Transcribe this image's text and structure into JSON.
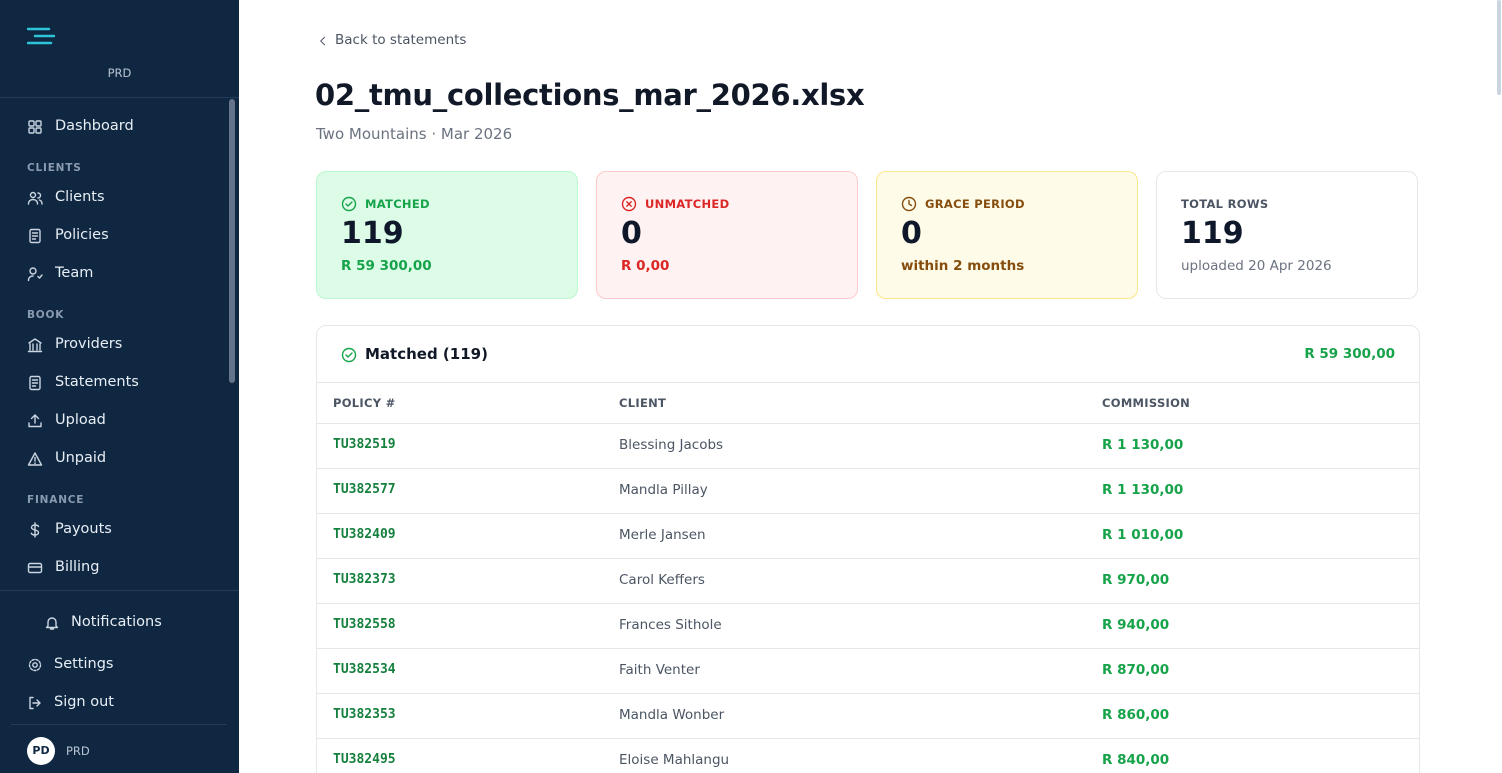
{
  "sidebar": {
    "brand": "PRD",
    "groups": [
      {
        "items": [
          "Dashboard"
        ]
      },
      {
        "label": "CLIENTS",
        "items": [
          "Clients",
          "Policies",
          "Team"
        ]
      },
      {
        "label": "BOOK",
        "items": [
          "Providers",
          "Statements",
          "Upload",
          "Unpaid"
        ]
      },
      {
        "label": "FINANCE",
        "items": [
          "Payouts",
          "Billing"
        ]
      }
    ],
    "footer": [
      "Notifications",
      "Settings",
      "Sign out"
    ],
    "user": {
      "initials": "PD",
      "name": "PRD"
    }
  },
  "main": {
    "back_link": "Back to statements",
    "title": "02_tmu_collections_mar_2026.xlsx",
    "subtitle": "Two Mountains · Mar 2026",
    "cards": [
      {
        "label": "MATCHED",
        "value": 119,
        "detail": "R 59 300,00"
      },
      {
        "label": "UNMATCHED",
        "value": 0,
        "detail": "R 0,00"
      },
      {
        "label": "GRACE PERIOD",
        "value": 0,
        "detail": "within 2 months"
      },
      {
        "label": "TOTAL ROWS",
        "value": 119,
        "detail": "uploaded 20 Apr 2026"
      }
    ],
    "table": {
      "title": "Matched (119)",
      "total": "R 59 300,00",
      "columns": [
        "POLICY #",
        "CLIENT",
        "COMMISSION"
      ],
      "rows": [
        [
          "TU382519",
          "Blessing Jacobs",
          "R 1 130,00"
        ],
        [
          "TU382577",
          "Mandla Pillay",
          "R 1 130,00"
        ],
        [
          "TU382409",
          "Merle Jansen",
          "R 1 010,00"
        ],
        [
          "TU382373",
          "Carol Keffers",
          "R 970,00"
        ],
        [
          "TU382558",
          "Frances Sithole",
          "R 940,00"
        ],
        [
          "TU382534",
          "Faith Venter",
          "R 870,00"
        ],
        [
          "TU382353",
          "Mandla Wonber",
          "R 860,00"
        ],
        [
          "TU382495",
          "Eloise Mahlangu",
          "R 840,00"
        ]
      ]
    }
  }
}
